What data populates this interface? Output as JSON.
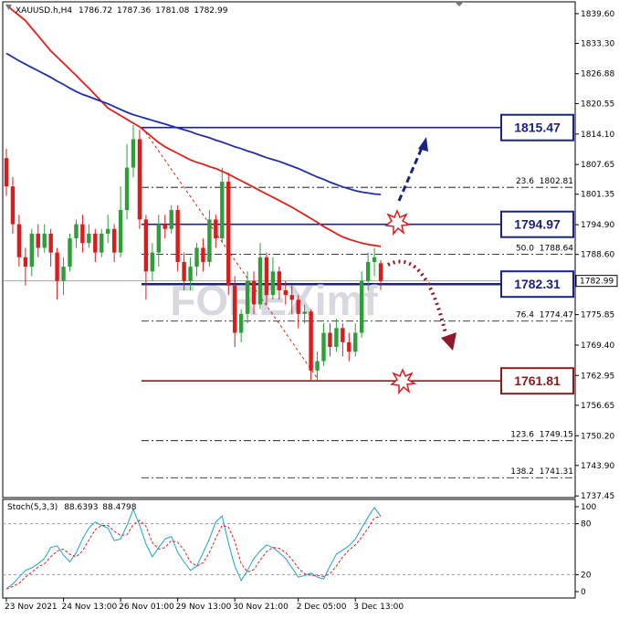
{
  "chart_data": {
    "type": "candlestick",
    "symbol": "XAUUSD.h,H4",
    "watermark": "FOREXimf",
    "x": [
      "23 Nov 2021",
      null,
      null,
      null,
      null,
      null,
      null,
      null,
      null,
      "24 Nov 13:00",
      null,
      null,
      null,
      null,
      null,
      null,
      null,
      null,
      "26 Nov 01:00",
      null,
      null,
      null,
      null,
      null,
      null,
      null,
      null,
      "29 Nov 13:00",
      null,
      null,
      null,
      null,
      null,
      null,
      null,
      null,
      "30 Nov 21:00",
      null,
      null,
      null,
      null,
      null,
      null,
      null,
      null,
      null,
      "2 Dec 05:00",
      null,
      null,
      null,
      null,
      null,
      null,
      null,
      null,
      "3 Dec 13:00",
      null,
      null,
      null,
      null
    ],
    "open": [
      1809,
      1803,
      1795,
      1788,
      1786,
      1793,
      1790,
      1793,
      1789,
      1783,
      1786,
      1792,
      1795,
      1791,
      1793,
      1789,
      1793,
      1794,
      1789,
      1798,
      1807,
      1813,
      1796,
      1785,
      1789,
      1795,
      1794,
      1798,
      1787,
      1783,
      1786,
      1790,
      1787,
      1796,
      1792,
      1804,
      1782,
      1772,
      1776,
      1783,
      1778,
      1788,
      1780,
      1785,
      1781,
      1780,
      1779,
      1776,
      1776.5,
      1764,
      1766,
      1772,
      1769,
      1773,
      1770,
      1768,
      1772,
      1783,
      1787,
      1786.72
    ],
    "high": [
      1811,
      1805,
      1797,
      1790,
      1794,
      1795,
      1795,
      1794,
      1790,
      1788,
      1793,
      1796,
      1797,
      1795,
      1794,
      1794,
      1797,
      1795,
      1803,
      1812,
      1816,
      1815,
      1797,
      1791,
      1797,
      1797,
      1799,
      1799,
      1789,
      1788,
      1791,
      1792,
      1798,
      1797,
      1807,
      1806,
      1784,
      1777,
      1785,
      1785,
      1791,
      1789,
      1788,
      1786,
      1783,
      1782,
      1780,
      1778,
      1777,
      1768,
      1774,
      1774,
      1775,
      1774,
      1772,
      1774,
      1785,
      1789,
      1790,
      1787.36
    ],
    "low": [
      1801,
      1793,
      1786,
      1782,
      1784,
      1788,
      1789,
      1786,
      1779,
      1780,
      1785,
      1790,
      1789,
      1790,
      1787,
      1788,
      1791,
      1787,
      1788,
      1796,
      1805,
      1794,
      1779,
      1783,
      1786,
      1792,
      1793,
      1785,
      1781,
      1781,
      1784,
      1785,
      1786,
      1790,
      1791,
      1780,
      1769,
      1770,
      1774,
      1776,
      1777,
      1778,
      1779,
      1779,
      1778,
      1776,
      1773,
      1774,
      1762,
      1762,
      1765,
      1767,
      1768,
      1767,
      1766,
      1767,
      1771,
      1781,
      1784,
      1781.08
    ],
    "close": [
      1803,
      1795,
      1788,
      1786,
      1793,
      1790,
      1793,
      1789,
      1783,
      1786,
      1792,
      1795,
      1791,
      1793,
      1789,
      1793,
      1794,
      1789,
      1798,
      1807,
      1813,
      1796,
      1785,
      1789,
      1795,
      1794,
      1798,
      1787,
      1783,
      1786,
      1790,
      1787,
      1796,
      1792,
      1804,
      1782,
      1772,
      1776,
      1783,
      1778,
      1788,
      1780,
      1785,
      1781,
      1780,
      1779,
      1776,
      1776.5,
      1764,
      1766,
      1772,
      1769,
      1773,
      1770,
      1768,
      1772,
      1783,
      1787,
      1788,
      1782.99
    ],
    "up_color": "#2e9e3a",
    "down_color": "#d91c1c",
    "ylim": [
      1737.1,
      1842.1
    ],
    "yticks": [
      {
        "value": 1839.6,
        "label": "1839.60"
      },
      {
        "value": 1833.3,
        "label": "1833.30"
      },
      {
        "value": 1826.88,
        "label": "1826.88"
      },
      {
        "value": 1820.55,
        "label": "1820.55"
      },
      {
        "value": 1814.1,
        "label": "1814.10"
      },
      {
        "value": 1807.65,
        "label": "1807.65"
      },
      {
        "value": 1801.35,
        "label": "1801.35"
      },
      {
        "value": 1794.9,
        "label": "1794.90"
      },
      {
        "value": 1788.6,
        "label": "1788.60"
      },
      {
        "value": 1775.85,
        "label": "1775.85"
      },
      {
        "value": 1769.4,
        "label": "1769.40"
      },
      {
        "value": 1762.95,
        "label": "1762.95"
      },
      {
        "value": 1756.65,
        "label": "1756.65"
      },
      {
        "value": 1750.2,
        "label": "1750.20"
      },
      {
        "value": 1743.9,
        "label": "1743.90"
      },
      {
        "value": 1737.45,
        "label": "1737.45"
      }
    ],
    "moving_averages": [
      {
        "color": "#e0201b",
        "values": [
          1841.5,
          1840.3,
          1839.2,
          1838.1,
          1836.5,
          1834.9,
          1833.3,
          1831.7,
          1830.4,
          1829.1,
          1827.8,
          1826.5,
          1825.1,
          1823.8,
          1822.4,
          1821.0,
          1819.6,
          1818.8,
          1818.0,
          1817.2,
          1816.4,
          1815.6,
          1814.5,
          1813.4,
          1812.3,
          1811.4,
          1810.7,
          1810.0,
          1809.3,
          1808.6,
          1808.1,
          1807.7,
          1807.2,
          1806.8,
          1806.2,
          1805.6,
          1804.9,
          1804.2,
          1803.5,
          1802.8,
          1802.1,
          1801.4,
          1800.7,
          1800.0,
          1799.3,
          1798.6,
          1797.8,
          1797.0,
          1796.2,
          1795.4,
          1794.5,
          1793.8,
          1793.0,
          1792.3,
          1791.8,
          1791.4,
          1791.0,
          1790.7,
          1790.5,
          1790.3
        ]
      },
      {
        "color": "#1f2fa8",
        "values": [
          1831.2,
          1830.4,
          1829.6,
          1828.9,
          1828.2,
          1827.5,
          1826.8,
          1826.1,
          1825.3,
          1824.6,
          1823.8,
          1823.1,
          1822.5,
          1822.0,
          1821.5,
          1821.0,
          1820.5,
          1819.9,
          1819.3,
          1818.7,
          1818.2,
          1817.8,
          1817.4,
          1817.0,
          1816.6,
          1816.2,
          1815.8,
          1815.4,
          1815.0,
          1814.6,
          1814.1,
          1813.7,
          1813.3,
          1812.8,
          1812.4,
          1811.9,
          1811.4,
          1811.0,
          1810.5,
          1810.1,
          1809.6,
          1809.1,
          1808.7,
          1808.3,
          1807.8,
          1807.3,
          1806.8,
          1806.2,
          1805.6,
          1805.0,
          1804.5,
          1803.9,
          1803.4,
          1802.9,
          1802.5,
          1802.1,
          1801.8,
          1801.6,
          1801.4,
          1801.3
        ]
      }
    ],
    "levels": [
      {
        "value": 1815.47,
        "color": "#1a237e"
      },
      {
        "value": 1794.97,
        "color": "#1a237e"
      },
      {
        "value": 1782.31,
        "color": "#1a237e"
      },
      {
        "value": 1761.81,
        "color": "#8b1a1a"
      }
    ],
    "fib_levels": [
      {
        "ratio": "23.6",
        "value": 1802.81
      },
      {
        "ratio": "50.0",
        "value": 1788.64
      },
      {
        "ratio": "76.4",
        "value": 1774.47
      },
      {
        "ratio": "123.6",
        "value": 1749.15
      },
      {
        "ratio": "138.2",
        "value": 1741.31
      }
    ],
    "stochastic": {
      "title": "Stoch(5,3,3)",
      "ylim": [
        -7.5,
        108.6
      ],
      "yticks": [
        100,
        80,
        20,
        0
      ],
      "levels": [
        80,
        20
      ],
      "series": [
        {
          "color": "#1aa3c9",
          "values": [
            3,
            9,
            17,
            25,
            28,
            33,
            39,
            52,
            54,
            43,
            35,
            46,
            62,
            75,
            82,
            78,
            75,
            60,
            62,
            78,
            97,
            78,
            56,
            41,
            52,
            62,
            65,
            46,
            35,
            25,
            30,
            46,
            62,
            82,
            89,
            57,
            30,
            13,
            25,
            39,
            48,
            55,
            52,
            46,
            39,
            28,
            17,
            19,
            22,
            17,
            15,
            30,
            44,
            49,
            54,
            62,
            75,
            88,
            99,
            88.6393
          ]
        },
        {
          "color": "#e0201b",
          "values": [
            3,
            6,
            10,
            17,
            23,
            29,
            33,
            41,
            48,
            50,
            44,
            41,
            48,
            61,
            73,
            78,
            78,
            71,
            66,
            67,
            79,
            84,
            77,
            58,
            50,
            52,
            60,
            58,
            49,
            35,
            30,
            34,
            46,
            63,
            78,
            76,
            59,
            33,
            23,
            26,
            37,
            47,
            52,
            51,
            46,
            38,
            28,
            21,
            19,
            19,
            18,
            21,
            30,
            41,
            49,
            55,
            64,
            75,
            87,
            88.4798
          ]
        }
      ]
    }
  }
}
